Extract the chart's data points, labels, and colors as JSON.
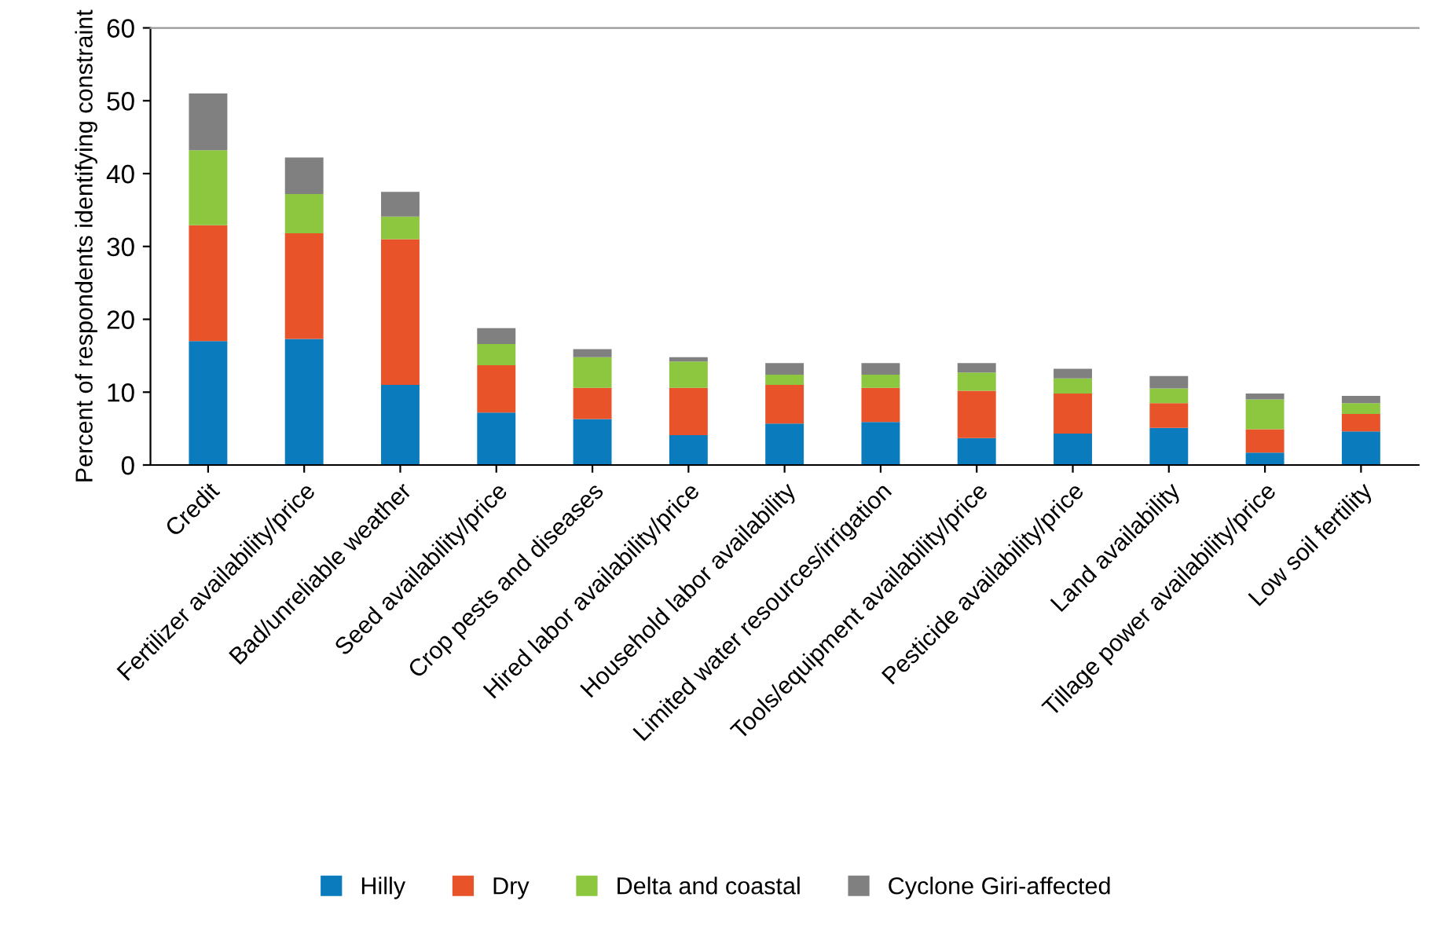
{
  "chart_data": {
    "type": "bar",
    "stacked": true,
    "ylabel": "Percent of respondents identifying constraint",
    "categories": [
      "Credit",
      "Fertilizer availability/price",
      "Bad/unreliable weather",
      "Seed availability/price",
      "Crop pests and diseases",
      "Hired labor availability/price",
      "Household labor availability",
      "Limited water resources/irrigation",
      "Tools/equipment availability/price",
      "Pesticide availability/price",
      "Land availability",
      "Tillage power availability/price",
      "Low soil fertility"
    ],
    "series": [
      {
        "name": "Hilly",
        "color": "#0a7bbd",
        "values": [
          17.0,
          17.3,
          11.0,
          7.2,
          6.3,
          4.1,
          5.7,
          5.9,
          3.7,
          4.3,
          5.1,
          1.7,
          4.6
        ]
      },
      {
        "name": "Dry",
        "color": "#e8532a",
        "values": [
          15.9,
          14.5,
          20.0,
          6.5,
          4.3,
          6.5,
          5.3,
          4.7,
          6.5,
          5.5,
          3.4,
          3.2,
          2.4
        ]
      },
      {
        "name": "Delta and coastal",
        "color": "#8dc63f",
        "values": [
          10.3,
          5.4,
          3.1,
          2.9,
          4.2,
          3.6,
          1.4,
          1.8,
          2.5,
          2.1,
          2.0,
          4.1,
          1.5
        ]
      },
      {
        "name": "Cyclone Giri-affected",
        "color": "#808080",
        "values": [
          7.8,
          5.0,
          3.4,
          2.2,
          1.1,
          0.6,
          1.6,
          1.6,
          1.3,
          1.3,
          1.7,
          0.8,
          1.0
        ]
      }
    ],
    "ylim": [
      0,
      60
    ],
    "yticks": [
      0,
      10,
      20,
      30,
      40,
      50,
      60
    ],
    "grid": false,
    "legend": "bottom"
  }
}
